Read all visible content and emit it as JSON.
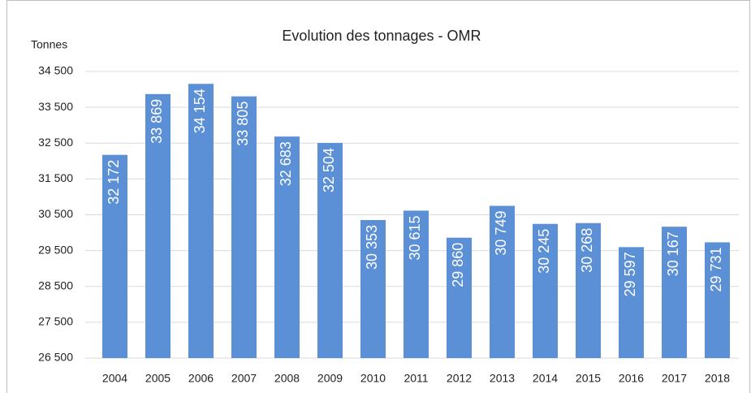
{
  "chart_data": {
    "type": "bar",
    "title": "Evolution des tonnages - OMR",
    "y_label": "Tonnes",
    "categories": [
      "2004",
      "2005",
      "2006",
      "2007",
      "2008",
      "2009",
      "2010",
      "2011",
      "2012",
      "2013",
      "2014",
      "2015",
      "2016",
      "2017",
      "2018"
    ],
    "values": [
      32172,
      33869,
      34154,
      33805,
      32683,
      32504,
      30353,
      30615,
      29860,
      30749,
      30245,
      30268,
      29597,
      30167,
      29731
    ],
    "value_labels": [
      "32 172",
      "33 869",
      "34 154",
      "33 805",
      "32 683",
      "32 504",
      "30 353",
      "30 615",
      "29 860",
      "30 749",
      "30 245",
      "30 268",
      "29 597",
      "30 167",
      "29 731"
    ],
    "color": "#5b8fd6",
    "ylim": [
      26500,
      34500
    ],
    "yticks": [
      {
        "value": 26500,
        "label": "26 500"
      },
      {
        "value": 27500,
        "label": "27 500"
      },
      {
        "value": 28500,
        "label": "28 500"
      },
      {
        "value": 29500,
        "label": "29 500"
      },
      {
        "value": 30500,
        "label": "30 500"
      },
      {
        "value": 31500,
        "label": "31 500"
      },
      {
        "value": 32500,
        "label": "32 500"
      },
      {
        "value": 33500,
        "label": "33 500"
      },
      {
        "value": 34500,
        "label": "34 500"
      }
    ],
    "grid": true
  }
}
